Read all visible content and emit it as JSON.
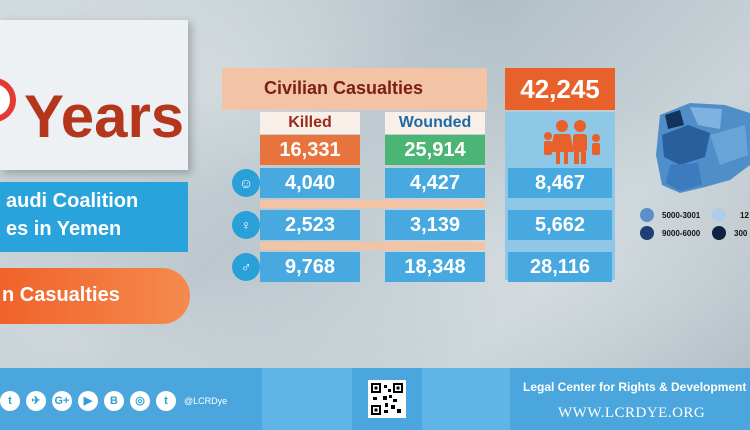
{
  "title": {
    "years_word": "Years",
    "banner_line1": "audi Coalition",
    "banner_line2": "es in Yemen",
    "casualties_banner": "n Casualties"
  },
  "table": {
    "title": "Civilian Casualties",
    "killed_label": "Killed",
    "wounded_label": "Wounded",
    "killed_total": "16,331",
    "wounded_total": "25,914",
    "grand_total": "42,245",
    "rows": [
      {
        "icon": "child-icon",
        "killed": "4,040",
        "wounded": "4,427",
        "total": "8,467"
      },
      {
        "icon": "woman-icon",
        "killed": "2,523",
        "wounded": "3,139",
        "total": "5,662"
      },
      {
        "icon": "man-icon",
        "killed": "9,768",
        "wounded": "18,348",
        "total": "28,116"
      }
    ]
  },
  "map": {
    "legend": [
      {
        "label": "5000-3001",
        "color": "#5b8fc7"
      },
      {
        "label": "12",
        "color": "#aecde9"
      },
      {
        "label": "9000-6000",
        "color": "#1d3f73"
      },
      {
        "label": "300",
        "color": "#0d2340"
      }
    ]
  },
  "footer": {
    "social_icons": [
      "twitter-icon",
      "telegram-icon",
      "google-plus-icon",
      "youtube-icon",
      "blogger-icon",
      "instagram-icon",
      "tumblr-icon"
    ],
    "social_glyphs": [
      "t",
      "✈",
      "G+",
      "▶",
      "B",
      "◎",
      "t"
    ],
    "handle": "@LCRDye",
    "org_name": "Legal Center for Rights & Development",
    "website": "WWW.LCRDYE.ORG"
  },
  "colors": {
    "orange": "#e9612a",
    "blue": "#48a9e0",
    "green": "#4bb575",
    "brown_text": "#b4371d"
  }
}
